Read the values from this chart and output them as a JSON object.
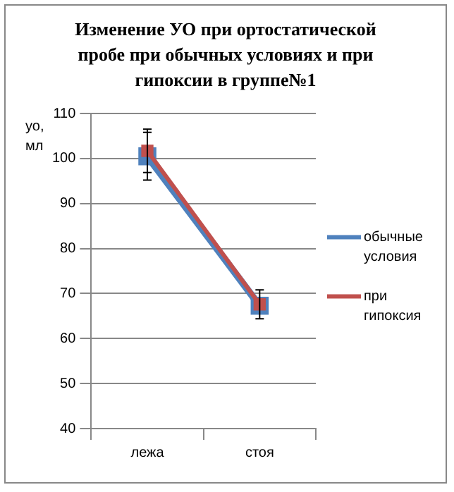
{
  "chart_data": {
    "type": "line",
    "title": "Изменение УО при ортостатической пробе при обычных условиях и при гипоксии в группе№1",
    "ylabel": "уо, мл",
    "categories": [
      "лежа",
      "стоя"
    ],
    "series": [
      {
        "name": "обычные условия",
        "color": "#4f81bd",
        "values": [
          100.5,
          67.3
        ],
        "errors": [
          5.3,
          null
        ]
      },
      {
        "name": "при гипоксия",
        "color": "#c0504d",
        "values": [
          101.7,
          67.6
        ],
        "errors": [
          4.8,
          3.2
        ]
      }
    ],
    "ylim": [
      40,
      110
    ],
    "yticks": [
      40,
      50,
      60,
      70,
      80,
      90,
      100,
      110
    ],
    "grid": "y",
    "legend": "right",
    "marker": "square"
  }
}
